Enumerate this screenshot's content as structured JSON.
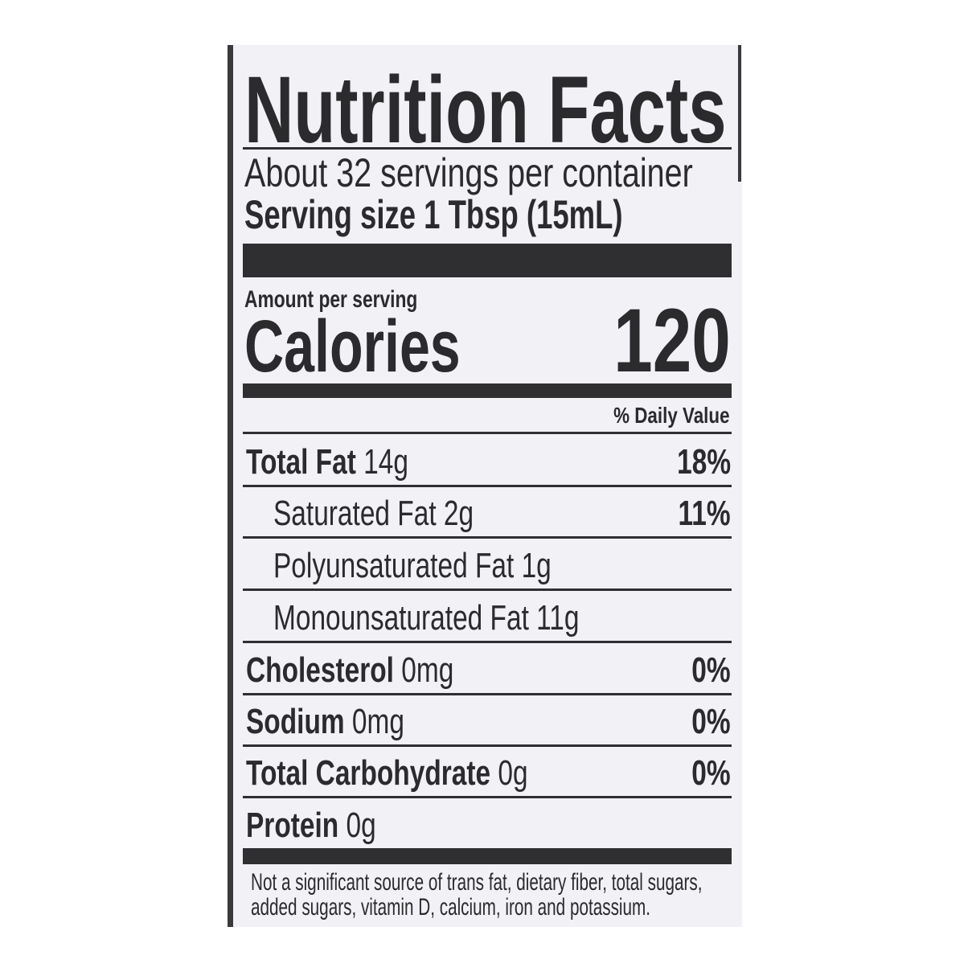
{
  "title": "Nutrition Facts",
  "servings_per_container": "About 32 servings per container",
  "serving_size_label": "Serving size",
  "serving_size_value": "1 Tbsp (15mL)",
  "amount_per_serving": "Amount per serving",
  "calories_label": "Calories",
  "calories_value": "120",
  "daily_value_header": "% Daily Value",
  "nutrients": [
    {
      "name": "Total Fat",
      "amount": "14g",
      "dv": "18%"
    },
    {
      "name": "Saturated Fat",
      "amount": "2g",
      "dv": "11%"
    },
    {
      "name": "Polyunsaturated Fat",
      "amount": "1g",
      "dv": ""
    },
    {
      "name": "Monounsaturated Fat",
      "amount": "11g",
      "dv": ""
    },
    {
      "name": "Cholesterol",
      "amount": "0mg",
      "dv": "0%"
    },
    {
      "name": "Sodium",
      "amount": "0mg",
      "dv": "0%"
    },
    {
      "name": "Total Carbohydrate",
      "amount": "0g",
      "dv": "0%"
    },
    {
      "name": "Protein",
      "amount": "0g",
      "dv": ""
    }
  ],
  "footnote_line1": "Not a significant source of trans fat, dietary fiber, total sugars,",
  "footnote_line2": "added sugars, vitamin D, calcium, iron and potassium."
}
